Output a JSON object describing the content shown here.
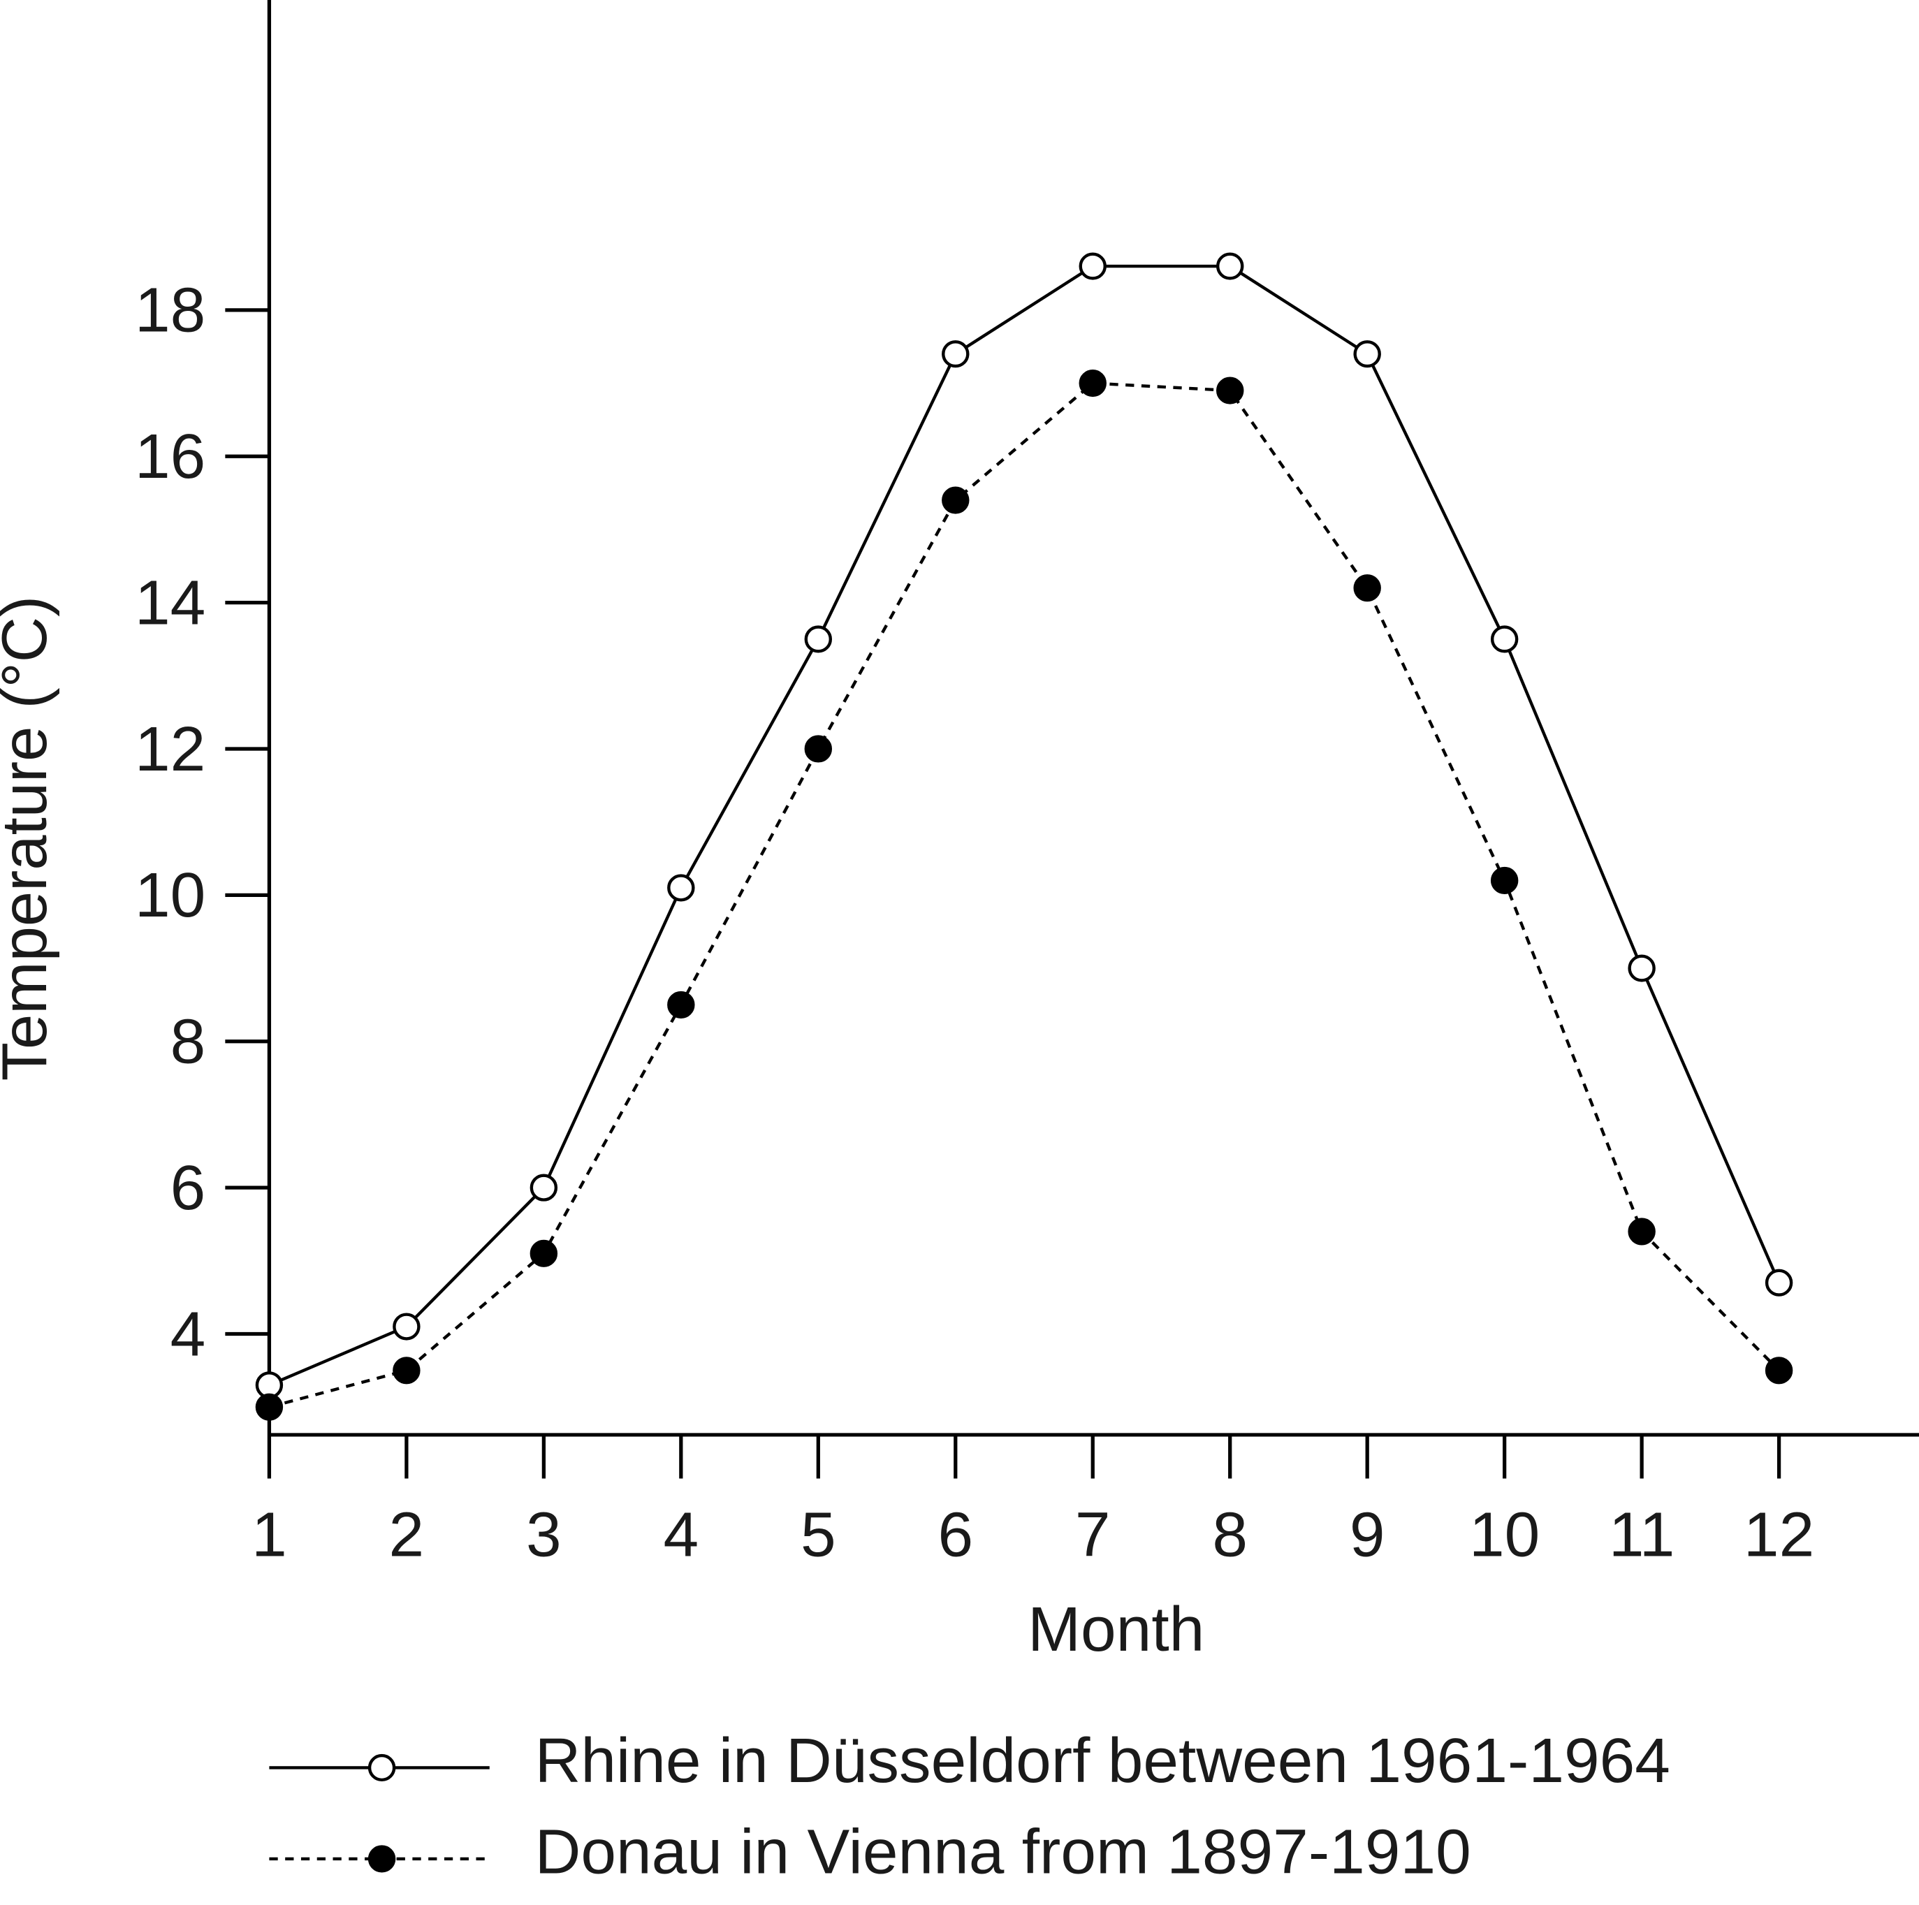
{
  "chart_data": {
    "type": "line",
    "x_label": "Month",
    "y_label": "Temperature (°C)",
    "x": [
      1,
      2,
      3,
      4,
      5,
      6,
      7,
      8,
      9,
      10,
      11,
      12
    ],
    "series": [
      {
        "name": "Rhine in Düsseldorf between 1961-1964",
        "color": "#000000",
        "linestyle": "solid",
        "marker": "open",
        "values": [
          3.3,
          4.1,
          6.0,
          10.1,
          13.5,
          17.4,
          18.6,
          18.6,
          17.4,
          13.5,
          9.0,
          4.7
        ]
      },
      {
        "name": "Donau in Vienna from 1897-1910",
        "color": "#000000",
        "linestyle": "dashed",
        "marker": "filled",
        "values": [
          3.0,
          3.5,
          5.1,
          8.5,
          12.0,
          15.4,
          17.0,
          16.9,
          14.2,
          10.2,
          5.4,
          3.5
        ]
      }
    ],
    "xlim": [
      1,
      13.02
    ],
    "xticks": [
      1,
      2,
      3,
      4,
      5,
      6,
      7,
      8,
      9,
      10,
      11,
      12
    ],
    "ylim": [
      2.62,
      22.24
    ],
    "yticks": [
      4,
      6,
      8,
      10,
      12,
      14,
      16,
      18
    ],
    "grid": false
  }
}
